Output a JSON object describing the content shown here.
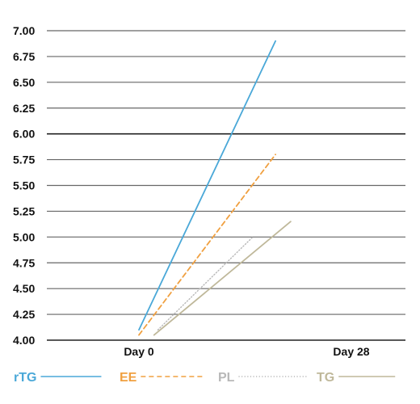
{
  "chart_data": {
    "type": "line",
    "x": [
      "Day 0",
      "Day 28"
    ],
    "yticks": [
      "4.00",
      "4.25",
      "4.50",
      "4.75",
      "5.00",
      "5.25",
      "5.50",
      "5.75",
      "6.00",
      "6.25",
      "6.50",
      "6.75",
      "7.00"
    ],
    "ylim": [
      4.0,
      7.0
    ],
    "grid": true,
    "legend_placement": "bottom",
    "series": [
      {
        "name": "rTG",
        "color": "#4aa8d8",
        "style": "solid",
        "start": [
          0.0,
          4.1
        ],
        "end": [
          18.0,
          6.9
        ]
      },
      {
        "name": "EE",
        "color": "#f0a040",
        "style": "dashed",
        "start": [
          0.0,
          4.05
        ],
        "end": [
          18.0,
          5.8
        ]
      },
      {
        "name": "PL",
        "color": "#b8b8b8",
        "style": "dotted",
        "start": [
          2.5,
          4.1
        ],
        "end": [
          15.0,
          5.0
        ]
      },
      {
        "name": "TG",
        "color": "#bfb89a",
        "style": "solid",
        "start": [
          2.0,
          4.05
        ],
        "end": [
          20.0,
          5.15
        ]
      }
    ]
  }
}
